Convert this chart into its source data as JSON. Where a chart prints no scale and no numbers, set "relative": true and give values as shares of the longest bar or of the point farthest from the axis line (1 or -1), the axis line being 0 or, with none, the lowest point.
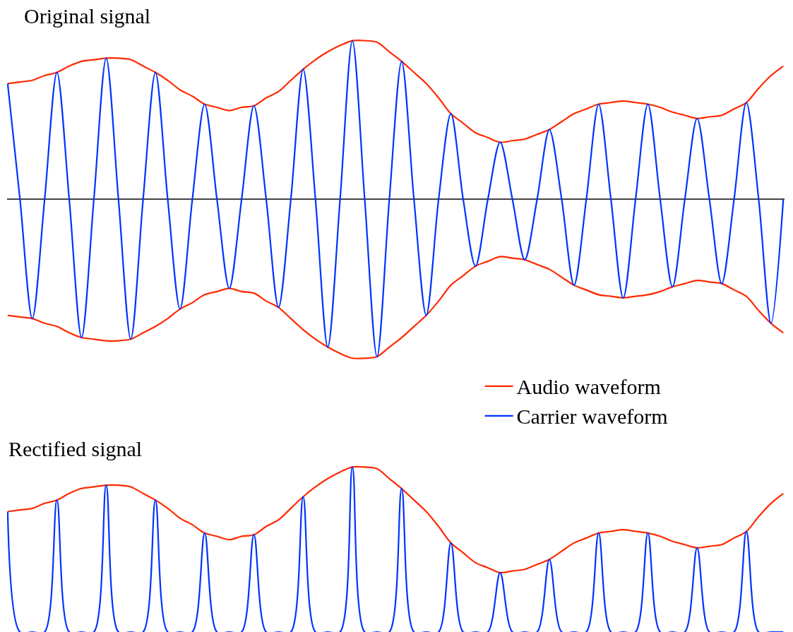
{
  "chart_data": [
    {
      "type": "line",
      "title": "Original signal",
      "relative": true,
      "tick_labels": false,
      "grid": false,
      "legend": "bottom right",
      "marker": "none",
      "line_style": "solid",
      "categories": [
        null,
        null,
        null,
        null,
        null,
        null,
        null,
        null,
        null,
        null,
        null,
        null,
        null,
        null,
        null,
        null,
        null,
        null,
        null,
        null,
        null,
        null,
        null,
        null,
        null,
        null,
        null,
        null,
        null,
        null,
        null,
        null,
        null,
        null,
        null,
        null,
        null,
        null,
        null,
        null,
        null,
        null,
        null,
        null,
        null,
        null,
        null,
        null,
        null,
        null,
        null,
        null,
        null,
        null,
        null,
        null,
        null,
        null,
        null,
        null,
        null,
        null,
        null,
        null
      ],
      "series": [
        {
          "name": "Audio waveform",
          "color": "#ff2a00",
          "values": [
            0.73,
            0.74,
            0.75,
            0.78,
            0.8,
            0.84,
            0.87,
            0.88,
            0.89,
            0.89,
            0.88,
            0.84,
            0.8,
            0.75,
            0.69,
            0.65,
            0.6,
            0.58,
            0.56,
            0.58,
            0.59,
            0.64,
            0.68,
            0.75,
            0.82,
            0.88,
            0.93,
            0.97,
            1.0,
            1.0,
            0.99,
            0.93,
            0.87,
            0.8,
            0.73,
            0.64,
            0.54,
            0.48,
            0.42,
            0.39,
            0.36,
            0.37,
            0.38,
            0.41,
            0.44,
            0.49,
            0.54,
            0.57,
            0.6,
            0.61,
            0.62,
            0.61,
            0.6,
            0.58,
            0.55,
            0.53,
            0.51,
            0.52,
            0.53,
            0.57,
            0.61,
            0.7,
            0.78,
            0.84
          ]
        },
        {
          "color": "#ff2a00",
          "values": [
            -0.73,
            -0.74,
            -0.75,
            -0.78,
            -0.8,
            -0.84,
            -0.87,
            -0.88,
            -0.89,
            -0.89,
            -0.88,
            -0.84,
            -0.8,
            -0.75,
            -0.69,
            -0.65,
            -0.6,
            -0.58,
            -0.56,
            -0.58,
            -0.59,
            -0.64,
            -0.68,
            -0.75,
            -0.82,
            -0.88,
            -0.93,
            -0.97,
            -1.0,
            -1.0,
            -0.99,
            -0.93,
            -0.87,
            -0.8,
            -0.73,
            -0.64,
            -0.54,
            -0.48,
            -0.42,
            -0.39,
            -0.36,
            -0.37,
            -0.38,
            -0.41,
            -0.44,
            -0.49,
            -0.54,
            -0.57,
            -0.6,
            -0.61,
            -0.62,
            -0.61,
            -0.6,
            -0.58,
            -0.55,
            -0.53,
            -0.51,
            -0.52,
            -0.53,
            -0.57,
            -0.61,
            -0.7,
            -0.78,
            -0.84
          ]
        },
        {
          "name": "Carrier waveform",
          "color": "#0033ff",
          "values": [
            0.73,
            0,
            -0.75,
            0,
            0.8,
            0,
            -0.87,
            0,
            0.89,
            0,
            -0.88,
            0,
            0.8,
            0,
            -0.69,
            0,
            0.6,
            0,
            -0.56,
            0,
            0.59,
            0,
            -0.68,
            0,
            0.82,
            0,
            -0.93,
            0,
            1.0,
            0,
            -0.99,
            0,
            0.87,
            0,
            -0.73,
            0,
            0.54,
            0,
            -0.42,
            0,
            0.36,
            0,
            -0.38,
            0,
            0.44,
            0,
            -0.54,
            0,
            0.6,
            0,
            -0.62,
            0,
            0.6,
            0,
            -0.55,
            0,
            0.51,
            0,
            -0.53,
            0,
            0.61,
            0,
            -0.78,
            0
          ]
        }
      ]
    },
    {
      "type": "line",
      "title": "Rectified signal",
      "relative": true,
      "tick_labels": false,
      "grid": false,
      "marker": "none",
      "line_style": "solid",
      "categories": [
        null,
        null,
        null,
        null,
        null,
        null,
        null,
        null,
        null,
        null,
        null,
        null,
        null,
        null,
        null,
        null,
        null,
        null,
        null,
        null,
        null,
        null,
        null,
        null,
        null,
        null,
        null,
        null,
        null,
        null,
        null,
        null,
        null,
        null,
        null,
        null,
        null,
        null,
        null,
        null,
        null,
        null,
        null,
        null,
        null,
        null,
        null,
        null,
        null,
        null,
        null,
        null,
        null,
        null,
        null,
        null,
        null,
        null,
        null,
        null,
        null,
        null,
        null,
        null
      ],
      "series": [
        {
          "color": "#ff2a00",
          "values": [
            0.73,
            0.74,
            0.75,
            0.78,
            0.8,
            0.84,
            0.87,
            0.88,
            0.89,
            0.89,
            0.88,
            0.84,
            0.8,
            0.75,
            0.69,
            0.65,
            0.6,
            0.58,
            0.56,
            0.58,
            0.59,
            0.64,
            0.68,
            0.75,
            0.82,
            0.88,
            0.93,
            0.97,
            1.0,
            1.0,
            0.99,
            0.93,
            0.87,
            0.8,
            0.73,
            0.64,
            0.54,
            0.48,
            0.42,
            0.39,
            0.36,
            0.37,
            0.38,
            0.41,
            0.44,
            0.49,
            0.54,
            0.57,
            0.6,
            0.61,
            0.62,
            0.61,
            0.6,
            0.58,
            0.55,
            0.53,
            0.51,
            0.52,
            0.53,
            0.57,
            0.61,
            0.7,
            0.78,
            0.84
          ]
        },
        {
          "color": "#0033ff",
          "values": [
            0.73,
            0,
            0,
            0,
            0.8,
            0,
            0,
            0,
            0.89,
            0,
            0,
            0,
            0.8,
            0,
            0,
            0,
            0.6,
            0,
            0,
            0,
            0.59,
            0,
            0,
            0,
            0.82,
            0,
            0,
            0,
            1.0,
            0,
            0,
            0,
            0.87,
            0,
            0,
            0,
            0.54,
            0,
            0,
            0,
            0.36,
            0,
            0,
            0,
            0.44,
            0,
            0,
            0,
            0.6,
            0,
            0,
            0,
            0.6,
            0,
            0,
            0,
            0.51,
            0,
            0,
            0,
            0.61,
            0,
            0,
            0
          ]
        }
      ]
    }
  ]
}
